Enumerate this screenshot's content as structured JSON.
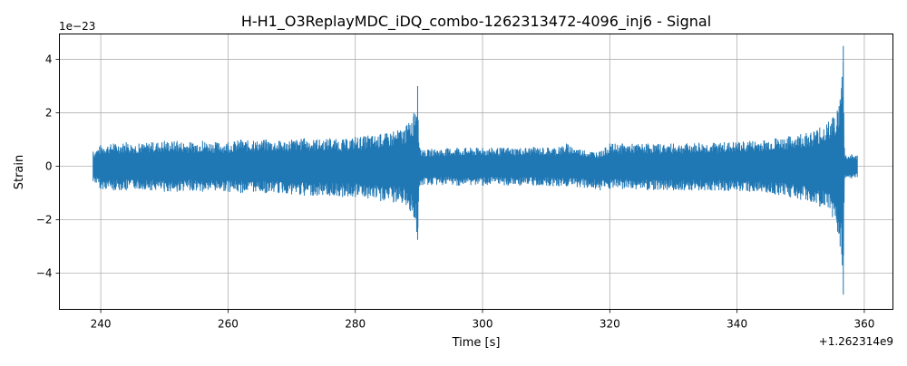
{
  "chart_data": {
    "type": "line",
    "title": "H-H1_O3ReplayMDC_iDQ_combo-1262313472-4096_inj6 - Signal",
    "xlabel": "Time [s]",
    "ylabel": "Strain",
    "x_offset_label": "+1.262314e9",
    "y_scale_label": "1e−23",
    "xlim": [
      233.5,
      364.5
    ],
    "ylim": [
      -5.35,
      4.95
    ],
    "x_ticks": [
      240,
      260,
      280,
      300,
      320,
      340,
      360
    ],
    "y_ticks": [
      -4,
      -2,
      0,
      2,
      4
    ],
    "x_tick_labels": [
      "240",
      "260",
      "280",
      "300",
      "320",
      "340",
      "360"
    ],
    "y_tick_labels": [
      "−4",
      "−2",
      "0",
      "2",
      "4"
    ],
    "grid": true,
    "color": "#1f77b4",
    "series": [
      {
        "x": [
          238.8,
          240,
          242,
          244,
          246,
          248,
          250,
          252,
          254,
          256,
          258,
          260,
          262,
          264,
          266,
          268,
          270,
          272,
          274,
          276,
          278,
          280,
          282,
          284,
          286,
          288,
          289.2,
          289.8,
          290.1,
          290.3,
          290.6,
          292,
          296,
          300,
          304,
          308,
          312,
          313.2,
          316,
          318.5,
          320,
          322,
          326,
          330,
          334,
          338,
          342,
          346,
          350,
          353,
          355,
          356.2,
          356.7,
          356.9,
          357.1,
          358,
          358.9
        ],
        "upper": [
          0.55,
          0.8,
          0.85,
          0.9,
          0.85,
          0.9,
          0.95,
          0.95,
          0.9,
          0.95,
          0.9,
          0.9,
          1.0,
          0.95,
          1.0,
          0.95,
          1.0,
          1.05,
          1.0,
          1.05,
          1.0,
          1.1,
          1.15,
          1.2,
          1.3,
          1.5,
          2.0,
          3.0,
          0.7,
          0.6,
          0.6,
          0.65,
          0.7,
          0.7,
          0.7,
          0.72,
          0.72,
          0.85,
          0.6,
          0.55,
          0.85,
          0.85,
          0.85,
          0.85,
          0.88,
          0.9,
          0.95,
          1.05,
          1.2,
          1.45,
          1.8,
          2.5,
          4.5,
          0.45,
          0.4,
          0.45,
          0.4
        ],
        "lower": [
          -0.55,
          -0.85,
          -0.9,
          -0.9,
          -0.85,
          -0.9,
          -0.95,
          -0.95,
          -0.9,
          -0.95,
          -0.9,
          -0.95,
          -1.0,
          -0.95,
          -1.0,
          -1.0,
          -1.05,
          -1.1,
          -1.1,
          -1.1,
          -1.15,
          -1.15,
          -1.2,
          -1.3,
          -1.35,
          -1.45,
          -1.9,
          -2.75,
          -0.7,
          -0.7,
          -0.7,
          -0.7,
          -0.72,
          -0.72,
          -0.72,
          -0.72,
          -0.75,
          -0.75,
          -0.8,
          -0.9,
          -0.85,
          -0.85,
          -0.88,
          -0.9,
          -0.9,
          -0.92,
          -0.95,
          -1.05,
          -1.25,
          -1.5,
          -1.9,
          -3.0,
          -4.8,
          -0.45,
          -0.4,
          -0.45,
          -0.4
        ]
      }
    ]
  }
}
